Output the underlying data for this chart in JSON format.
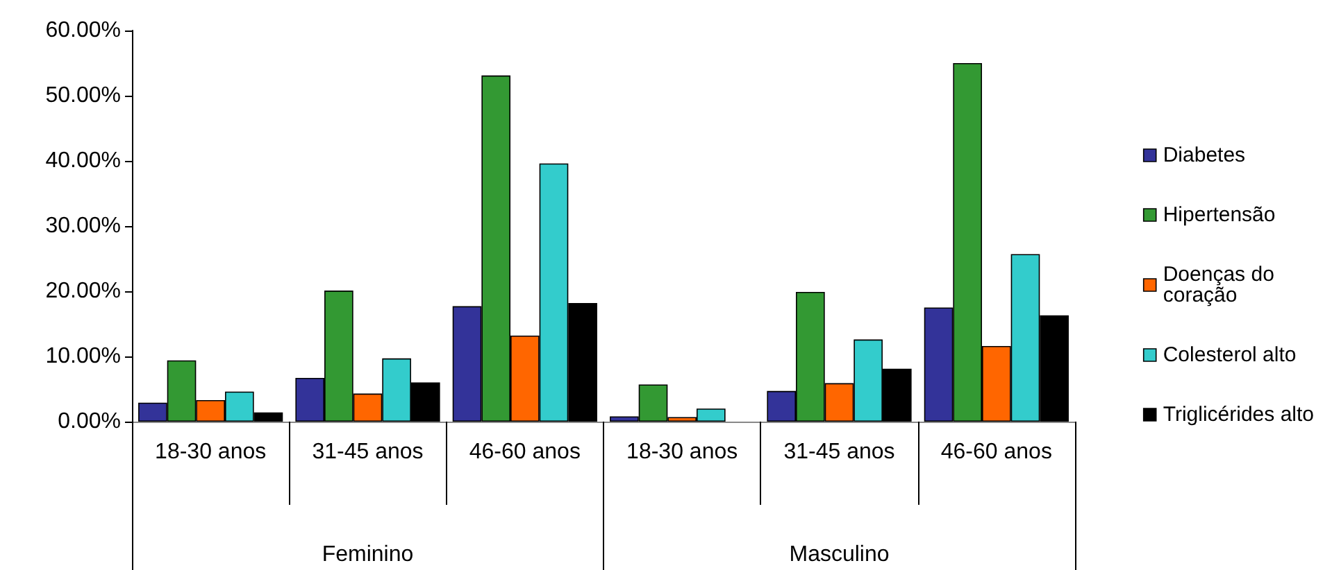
{
  "chart_data": {
    "type": "bar",
    "categories": [
      "18-30 anos",
      "31-45 anos",
      "46-60 anos",
      "18-30 anos",
      "31-45 anos",
      "46-60 anos"
    ],
    "series": [
      {
        "name": "Diabetes",
        "color": "#333399",
        "values": [
          2.9,
          6.7,
          17.7,
          0.8,
          4.7,
          17.5
        ]
      },
      {
        "name": "Hipertensão",
        "color": "#339933",
        "values": [
          9.4,
          20.1,
          53.1,
          5.7,
          19.9,
          55.0
        ]
      },
      {
        "name": "Doenças do coração",
        "color": "#ff6600",
        "values": [
          3.3,
          4.3,
          13.2,
          0.7,
          5.9,
          11.6
        ]
      },
      {
        "name": "Colesterol alto",
        "color": "#33cccc",
        "values": [
          4.6,
          9.7,
          39.6,
          2.0,
          12.6,
          25.7
        ]
      },
      {
        "name": "Triglicérides alto",
        "color": "#000000",
        "values": [
          1.4,
          6.0,
          18.2,
          null,
          8.1,
          16.3
        ]
      }
    ],
    "annotations": [
      "Feminino",
      "Masculino"
    ],
    "ylim": [
      0,
      60
    ],
    "yticks": [
      {
        "value": 0,
        "label": "0.00%"
      },
      {
        "value": 10,
        "label": "10.00%"
      },
      {
        "value": 20,
        "label": "20.00%"
      },
      {
        "value": 30,
        "label": "30.00%"
      },
      {
        "value": 40,
        "label": "40.00%"
      },
      {
        "value": 50,
        "label": "50.00%"
      },
      {
        "value": 60,
        "label": "60.00%"
      }
    ],
    "grid": false,
    "legend": "right"
  }
}
